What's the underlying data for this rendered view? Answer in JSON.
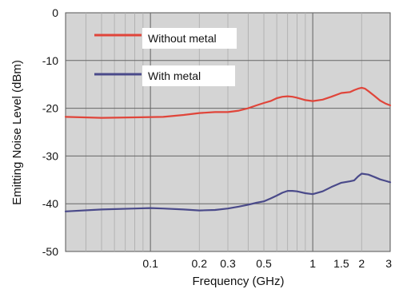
{
  "chart_data": {
    "type": "line",
    "title": "",
    "xlabel": "Frequency (GHz)",
    "ylabel": "Emitting Noise Level (dBm)",
    "x_scale": "log",
    "xlim": [
      0.03,
      3
    ],
    "ylim": [
      -50,
      0
    ],
    "x_ticks": [
      {
        "value": 0.1,
        "label": "0.1"
      },
      {
        "value": 0.2,
        "label": "0.2"
      },
      {
        "value": 0.3,
        "label": "0.3"
      },
      {
        "value": 0.5,
        "label": "0.5"
      },
      {
        "value": 1,
        "label": "1"
      },
      {
        "value": 1.5,
        "label": "1.5"
      },
      {
        "value": 2,
        "label": "2"
      },
      {
        "value": 3,
        "label": "3"
      }
    ],
    "y_ticks": [
      {
        "value": 0,
        "label": "0"
      },
      {
        "value": -10,
        "label": "-10"
      },
      {
        "value": -20,
        "label": "-20"
      },
      {
        "value": -30,
        "label": "-30"
      },
      {
        "value": -40,
        "label": "-40"
      },
      {
        "value": -50,
        "label": "-50"
      }
    ],
    "grid": true,
    "legend_position": "top-left",
    "series": [
      {
        "name": "Without metal",
        "color": "#e0453a",
        "x": [
          0.03,
          0.05,
          0.08,
          0.12,
          0.16,
          0.2,
          0.25,
          0.3,
          0.35,
          0.4,
          0.45,
          0.5,
          0.55,
          0.6,
          0.65,
          0.7,
          0.75,
          0.8,
          0.9,
          1.0,
          1.15,
          1.3,
          1.5,
          1.7,
          1.8,
          1.9,
          2.0,
          2.1,
          2.2,
          2.4,
          2.6,
          2.8,
          3.0
        ],
        "y": [
          -21.8,
          -22.0,
          -21.9,
          -21.8,
          -21.4,
          -21.0,
          -20.8,
          -20.8,
          -20.5,
          -20.0,
          -19.4,
          -18.9,
          -18.5,
          -17.9,
          -17.6,
          -17.5,
          -17.6,
          -17.8,
          -18.3,
          -18.5,
          -18.2,
          -17.6,
          -16.8,
          -16.6,
          -16.2,
          -15.9,
          -15.7,
          -15.9,
          -16.4,
          -17.4,
          -18.4,
          -19.0,
          -19.4
        ]
      },
      {
        "name": "With metal",
        "color": "#4a4a8a",
        "x": [
          0.03,
          0.05,
          0.08,
          0.1,
          0.12,
          0.16,
          0.2,
          0.25,
          0.3,
          0.35,
          0.4,
          0.45,
          0.5,
          0.55,
          0.6,
          0.65,
          0.7,
          0.75,
          0.8,
          0.9,
          1.0,
          1.15,
          1.3,
          1.5,
          1.7,
          1.8,
          1.9,
          2.0,
          2.2,
          2.4,
          2.6,
          2.8,
          3.0
        ],
        "y": [
          -41.6,
          -41.2,
          -41.0,
          -40.9,
          -41.0,
          -41.2,
          -41.4,
          -41.3,
          -41.0,
          -40.6,
          -40.2,
          -39.8,
          -39.5,
          -38.9,
          -38.3,
          -37.7,
          -37.3,
          -37.3,
          -37.4,
          -37.8,
          -38.0,
          -37.4,
          -36.5,
          -35.6,
          -35.3,
          -35.1,
          -34.3,
          -33.7,
          -33.9,
          -34.4,
          -34.9,
          -35.2,
          -35.5
        ]
      }
    ]
  }
}
